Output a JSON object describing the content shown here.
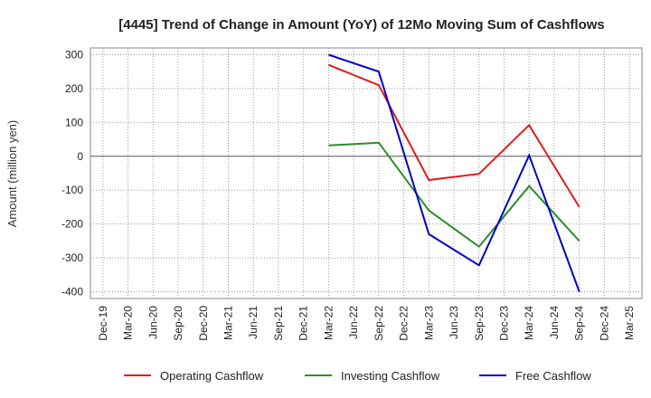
{
  "chart_data": {
    "type": "line",
    "title": "[4445]  Trend of Change in Amount (YoY) of 12Mo Moving Sum of Cashflows",
    "xlabel": "",
    "ylabel": "Amount (million yen)",
    "ylim": [
      -420,
      320
    ],
    "yticks": [
      300,
      200,
      100,
      0,
      -100,
      -200,
      -300,
      -400
    ],
    "categories": [
      "Dec-19",
      "Mar-20",
      "Jun-20",
      "Sep-20",
      "Dec-20",
      "Mar-21",
      "Jun-21",
      "Sep-21",
      "Dec-21",
      "Mar-22",
      "Jun-22",
      "Sep-22",
      "Dec-22",
      "Mar-23",
      "Jun-23",
      "Sep-23",
      "Dec-23",
      "Mar-24",
      "Jun-24",
      "Sep-24",
      "Dec-24",
      "Mar-25"
    ],
    "grid": true,
    "legend_position": "bottom",
    "series": [
      {
        "name": "Operating Cashflow",
        "color": "#e31a1c",
        "values": [
          null,
          null,
          null,
          null,
          null,
          null,
          null,
          null,
          null,
          270,
          null,
          210,
          null,
          -70,
          null,
          -52,
          null,
          92,
          null,
          -150,
          null,
          null
        ]
      },
      {
        "name": "Investing Cashflow",
        "color": "#2e8b2e",
        "values": [
          null,
          null,
          null,
          null,
          null,
          null,
          null,
          null,
          null,
          32,
          null,
          40,
          null,
          -160,
          null,
          -267,
          null,
          -88,
          null,
          -250,
          null,
          null
        ]
      },
      {
        "name": "Free Cashflow",
        "color": "#0000cc",
        "values": [
          null,
          null,
          null,
          null,
          null,
          null,
          null,
          null,
          null,
          300,
          null,
          250,
          null,
          -230,
          null,
          -322,
          null,
          3,
          null,
          -400,
          null,
          null
        ]
      }
    ]
  }
}
